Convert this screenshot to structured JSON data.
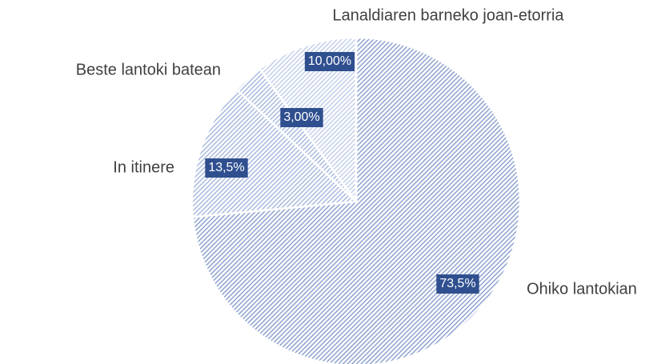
{
  "chart_data": {
    "type": "pie",
    "categories": [
      "Ohiko lantokian",
      "In itinere",
      "Beste lantoki batean",
      "Lanaldiaren barneko joan-etorria"
    ],
    "values": [
      73.5,
      13.5,
      3.0,
      10.0
    ],
    "value_labels": [
      "73,5%",
      "13,5%",
      "3,00%",
      "10,00%"
    ],
    "colors": [
      "#8ea3d0",
      "#a9badf",
      "#a9badf",
      "#c3cfea"
    ],
    "label_box_color": "#2f4f8f"
  }
}
